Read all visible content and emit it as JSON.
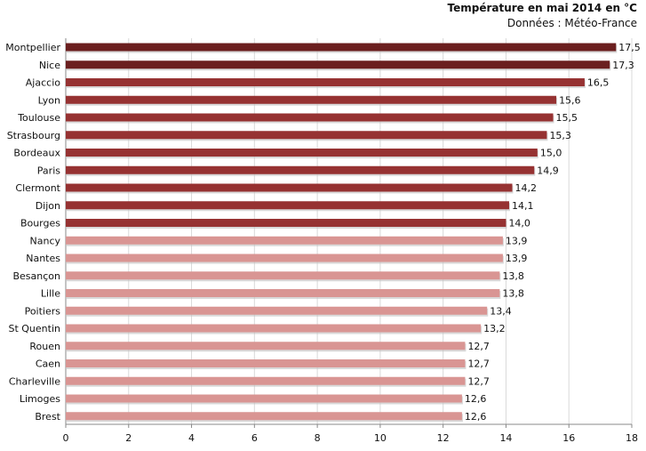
{
  "chart_data": {
    "type": "bar",
    "orientation": "horizontal",
    "title": "Température en mai 2014 en °C",
    "subtitle": "Données : Météo-France",
    "xlabel": "",
    "ylabel": "",
    "xlim": [
      0,
      18
    ],
    "x_ticks": [
      0,
      2,
      4,
      6,
      8,
      10,
      12,
      14,
      16,
      18
    ],
    "grid": "vertical-major",
    "categories": [
      "Montpellier",
      "Nice",
      "Ajaccio",
      "Lyon",
      "Toulouse",
      "Strasbourg",
      "Bordeaux",
      "Paris",
      "Clermont",
      "Dijon",
      "Bourges",
      "Nancy",
      "Nantes",
      "Besançon",
      "Lille",
      "Poitiers",
      "St Quentin",
      "Rouen",
      "Caen",
      "Charleville",
      "Limoges",
      "Brest"
    ],
    "values": [
      17.5,
      17.3,
      16.5,
      15.6,
      15.5,
      15.3,
      15.0,
      14.9,
      14.2,
      14.1,
      14.0,
      13.9,
      13.9,
      13.8,
      13.8,
      13.4,
      13.2,
      12.7,
      12.7,
      12.7,
      12.6,
      12.6
    ],
    "value_labels": [
      "17,5",
      "17,3",
      "16,5",
      "15,6",
      "15,5",
      "15,3",
      "15,0",
      "14,9",
      "14,2",
      "14,1",
      "14,0",
      "13,9",
      "13,9",
      "13,8",
      "13,8",
      "13,4",
      "13,2",
      "12,7",
      "12,7",
      "12,7",
      "12,6",
      "12,6"
    ],
    "colors": {
      "top_two": "#6b1f1f",
      "upper": "#963232",
      "lower": "#d99593",
      "grid": "#d9d9d9",
      "axis": "#888888",
      "shadow": "#bfbfbf"
    }
  }
}
